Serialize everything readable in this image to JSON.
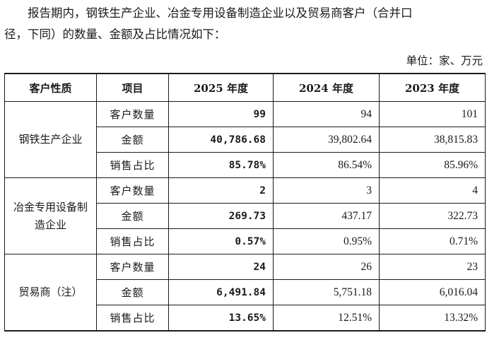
{
  "intro": {
    "line1": "　　报告期内，钢铁生产企业、冶金专用设备制造企业以及贸易商客户（合并口",
    "line2": "径，下同）的数量、金额及占比情况如下："
  },
  "unit": "单位：家、万元",
  "table": {
    "headers": [
      "客户性质",
      "项目",
      "2025 年度",
      "2024 年度",
      "2023 年度"
    ],
    "groups": [
      {
        "category": "钢铁生产企业",
        "rows": [
          {
            "item": "客户数量",
            "v2025": "99",
            "v2024": "94",
            "v2023": "101"
          },
          {
            "item": "金额",
            "v2025": "40,786.68",
            "v2024": "39,802.64",
            "v2023": "38,815.83"
          },
          {
            "item": "销售占比",
            "v2025": "85.78%",
            "v2024": "86.54%",
            "v2023": "85.96%"
          }
        ]
      },
      {
        "category": "冶金专用设备制造企业",
        "rows": [
          {
            "item": "客户数量",
            "v2025": "2",
            "v2024": "3",
            "v2023": "4"
          },
          {
            "item": "金额",
            "v2025": "269.73",
            "v2024": "437.17",
            "v2023": "322.73"
          },
          {
            "item": "销售占比",
            "v2025": "0.57%",
            "v2024": "0.95%",
            "v2023": "0.71%"
          }
        ]
      },
      {
        "category": "贸易商（注）",
        "rows": [
          {
            "item": "客户数量",
            "v2025": "24",
            "v2024": "26",
            "v2023": "23"
          },
          {
            "item": "金额",
            "v2025": "6,491.84",
            "v2024": "5,751.18",
            "v2023": "6,016.04"
          },
          {
            "item": "销售占比",
            "v2025": "13.65%",
            "v2024": "12.51%",
            "v2023": "13.32%"
          }
        ]
      }
    ]
  }
}
